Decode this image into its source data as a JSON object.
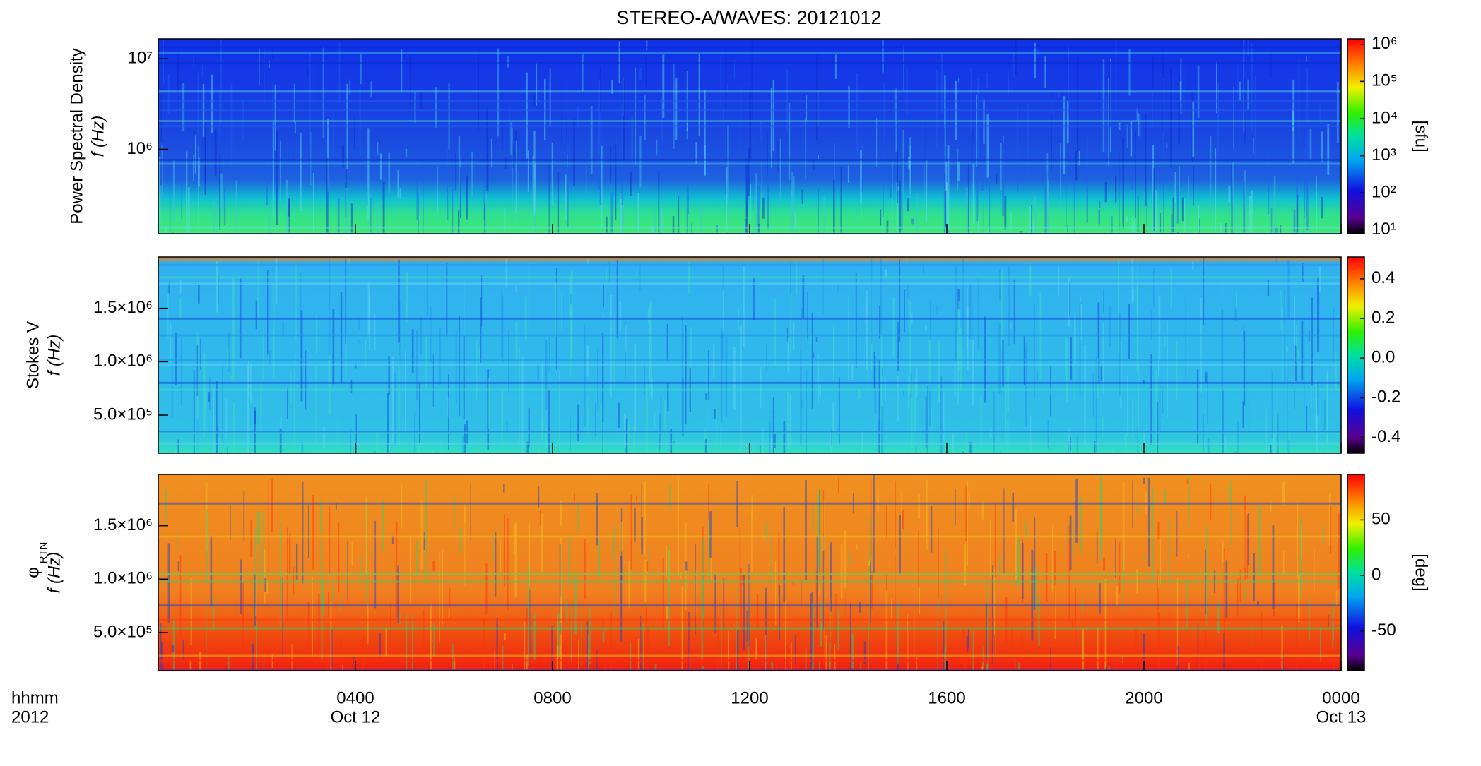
{
  "title": "STEREO-A/WAVES: 20121012",
  "x_axis_label": [
    "hhmm",
    "2012"
  ],
  "chart_data": [
    {
      "type": "spectrogram",
      "ylabel": [
        "Power Spectral Density",
        "f (Hz)"
      ],
      "log_y": true,
      "ylim": [
        117000,
        16600000
      ],
      "yticks": [
        {
          "value": 1000000,
          "label": "10⁶"
        },
        {
          "value": 10000000,
          "label": "10⁷"
        }
      ],
      "colormap": "rainbow",
      "colorbar_log": true,
      "clim": [
        8,
        1400000
      ],
      "cticks": [
        {
          "value": 10,
          "label": "10¹"
        },
        {
          "value": 100,
          "label": "10²"
        },
        {
          "value": 1000,
          "label": "10³"
        },
        {
          "value": 10000,
          "label": "10⁴"
        },
        {
          "value": 100000,
          "label": "10⁵"
        },
        {
          "value": 1000000,
          "label": "10⁶"
        }
      ],
      "colorbar_label": "[sfu]",
      "xlim": [
        0,
        24
      ]
    },
    {
      "type": "spectrogram",
      "ylabel": [
        "Stokes V",
        "f (Hz)"
      ],
      "log_y": false,
      "ylim": [
        143000,
        1980000
      ],
      "yticks": [
        {
          "value": 500000,
          "label": "5.0×10⁵"
        },
        {
          "value": 1000000,
          "label": "1.0×10⁶"
        },
        {
          "value": 1500000,
          "label": "1.5×10⁶"
        }
      ],
      "colormap": "rainbow",
      "colorbar_log": false,
      "clim": [
        -0.48,
        0.51
      ],
      "cticks": [
        -0.4,
        -0.2,
        {
          "value": 0,
          "label": "0.0"
        },
        0.2,
        0.4
      ],
      "xlim": [
        0,
        24
      ]
    },
    {
      "type": "spectrogram",
      "ylabel": [
        "φ",
        "f (Hz)"
      ],
      "ylabel_sub": "RTN",
      "log_y": false,
      "ylim": [
        143000,
        1980000
      ],
      "yticks": [
        {
          "value": 500000,
          "label": "5.0×10⁵"
        },
        {
          "value": 1000000,
          "label": "1.0×10⁶"
        },
        {
          "value": 1500000,
          "label": "1.5×10⁶"
        }
      ],
      "colormap": "rainbow",
      "colorbar_log": false,
      "clim": [
        -86,
        91
      ],
      "cticks": [
        -50,
        0,
        50
      ],
      "colorbar_label": "[deg]",
      "xlim": [
        0,
        24
      ],
      "xticks": [
        {
          "value": 4,
          "label": "0400"
        },
        {
          "value": 8,
          "label": "0800"
        },
        {
          "value": 12,
          "label": "1200"
        },
        {
          "value": 16,
          "label": "1600"
        },
        {
          "value": 20,
          "label": "2000"
        },
        {
          "value": 24,
          "label": "0000"
        }
      ],
      "x_dates": [
        {
          "value": 4,
          "label": "Oct 12"
        },
        {
          "value": 24,
          "label": "Oct 13"
        }
      ]
    }
  ]
}
